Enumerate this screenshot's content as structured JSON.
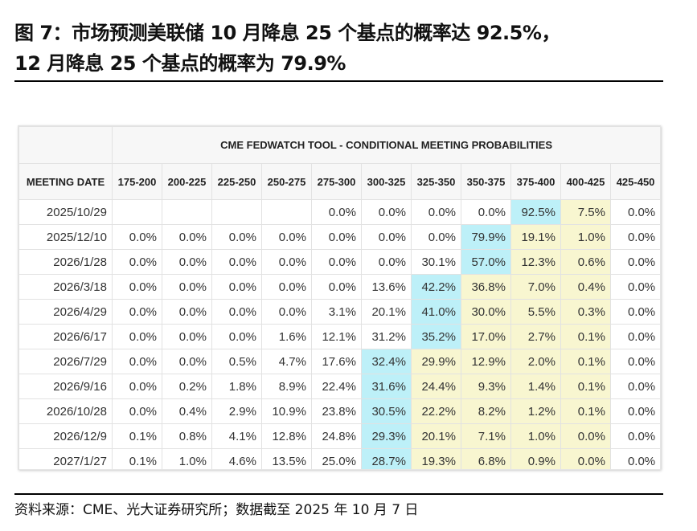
{
  "title": {
    "line1": "图 7：市场预测美联储 10 月降息 25 个基点的概率达 92.5%，",
    "line2": "12 月降息 25 个基点的概率为 79.9%"
  },
  "table": {
    "caption": "CME FEDWATCH TOOL - CONDITIONAL MEETING PROBABILITIES",
    "columns": [
      "MEETING DATE",
      "175-200",
      "200-225",
      "225-250",
      "250-275",
      "275-300",
      "300-325",
      "325-350",
      "350-375",
      "375-400",
      "400-425",
      "425-450"
    ],
    "rows": [
      {
        "date": "2025/10/29",
        "values": [
          "",
          "",
          "",
          "",
          "0.0%",
          "0.0%",
          "0.0%",
          "0.0%",
          "92.5%",
          "7.5%",
          "0.0%"
        ],
        "highlight": [
          "",
          "",
          "",
          "",
          "",
          "",
          "",
          "",
          "b",
          "y",
          ""
        ]
      },
      {
        "date": "2025/12/10",
        "values": [
          "0.0%",
          "0.0%",
          "0.0%",
          "0.0%",
          "0.0%",
          "0.0%",
          "0.0%",
          "79.9%",
          "19.1%",
          "1.0%",
          "0.0%"
        ],
        "highlight": [
          "",
          "",
          "",
          "",
          "",
          "",
          "",
          "b",
          "y",
          "y",
          ""
        ]
      },
      {
        "date": "2026/1/28",
        "values": [
          "0.0%",
          "0.0%",
          "0.0%",
          "0.0%",
          "0.0%",
          "0.0%",
          "30.1%",
          "57.0%",
          "12.3%",
          "0.6%",
          "0.0%"
        ],
        "highlight": [
          "",
          "",
          "",
          "",
          "",
          "",
          "",
          "b",
          "y",
          "y",
          ""
        ]
      },
      {
        "date": "2026/3/18",
        "values": [
          "0.0%",
          "0.0%",
          "0.0%",
          "0.0%",
          "0.0%",
          "13.6%",
          "42.2%",
          "36.8%",
          "7.0%",
          "0.4%",
          "0.0%"
        ],
        "highlight": [
          "",
          "",
          "",
          "",
          "",
          "",
          "b",
          "y",
          "y",
          "y",
          ""
        ]
      },
      {
        "date": "2026/4/29",
        "values": [
          "0.0%",
          "0.0%",
          "0.0%",
          "0.0%",
          "3.1%",
          "20.1%",
          "41.0%",
          "30.0%",
          "5.5%",
          "0.3%",
          "0.0%"
        ],
        "highlight": [
          "",
          "",
          "",
          "",
          "",
          "",
          "b",
          "y",
          "y",
          "y",
          ""
        ]
      },
      {
        "date": "2026/6/17",
        "values": [
          "0.0%",
          "0.0%",
          "0.0%",
          "1.6%",
          "12.1%",
          "31.2%",
          "35.2%",
          "17.0%",
          "2.7%",
          "0.1%",
          "0.0%"
        ],
        "highlight": [
          "",
          "",
          "",
          "",
          "",
          "",
          "b",
          "y",
          "y",
          "y",
          ""
        ]
      },
      {
        "date": "2026/7/29",
        "values": [
          "0.0%",
          "0.0%",
          "0.5%",
          "4.7%",
          "17.6%",
          "32.4%",
          "29.9%",
          "12.9%",
          "2.0%",
          "0.1%",
          "0.0%"
        ],
        "highlight": [
          "",
          "",
          "",
          "",
          "",
          "b",
          "y",
          "y",
          "y",
          "y",
          ""
        ]
      },
      {
        "date": "2026/9/16",
        "values": [
          "0.0%",
          "0.2%",
          "1.8%",
          "8.9%",
          "22.4%",
          "31.6%",
          "24.4%",
          "9.3%",
          "1.4%",
          "0.1%",
          "0.0%"
        ],
        "highlight": [
          "",
          "",
          "",
          "",
          "",
          "b",
          "y",
          "y",
          "y",
          "y",
          ""
        ]
      },
      {
        "date": "2026/10/28",
        "values": [
          "0.0%",
          "0.4%",
          "2.9%",
          "10.9%",
          "23.8%",
          "30.5%",
          "22.2%",
          "8.2%",
          "1.2%",
          "0.1%",
          "0.0%"
        ],
        "highlight": [
          "",
          "",
          "",
          "",
          "",
          "b",
          "y",
          "y",
          "y",
          "y",
          ""
        ]
      },
      {
        "date": "2026/12/9",
        "values": [
          "0.1%",
          "0.8%",
          "4.1%",
          "12.8%",
          "24.8%",
          "29.3%",
          "20.1%",
          "7.1%",
          "1.0%",
          "0.0%",
          "0.0%"
        ],
        "highlight": [
          "",
          "",
          "",
          "",
          "",
          "b",
          "y",
          "y",
          "y",
          "y",
          ""
        ]
      },
      {
        "date": "2027/1/27",
        "values": [
          "0.1%",
          "1.0%",
          "4.6%",
          "13.5%",
          "25.0%",
          "28.7%",
          "19.3%",
          "6.8%",
          "0.9%",
          "0.0%",
          "0.0%"
        ],
        "highlight": [
          "",
          "",
          "",
          "",
          "",
          "b",
          "y",
          "y",
          "y",
          "y",
          ""
        ]
      }
    ]
  },
  "colors": {
    "max_highlight": "#bdf0f8",
    "range_highlight": "#f8f6d0"
  },
  "source": "资料来源：CME、光大证券研究所；数据截至 2025 年 10 月 7 日"
}
